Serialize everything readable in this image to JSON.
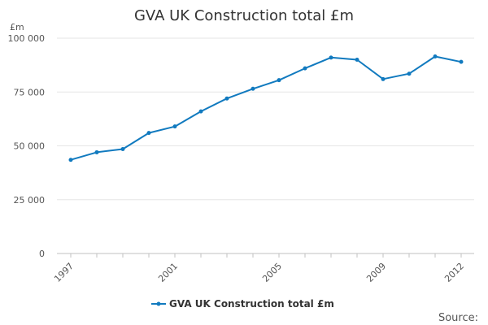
{
  "chart_data": {
    "type": "line",
    "title": "GVA UK Construction total £m",
    "ylabel": "£m",
    "xlabel": "",
    "x": [
      1997,
      1998,
      1999,
      2000,
      2001,
      2002,
      2003,
      2004,
      2005,
      2006,
      2007,
      2008,
      2009,
      2010,
      2011,
      2012
    ],
    "series": [
      {
        "name": "GVA UK Construction total £m",
        "values": [
          43500,
          47000,
          48500,
          56000,
          59000,
          66000,
          72000,
          76500,
          80500,
          86000,
          91000,
          90000,
          81000,
          83500,
          91500,
          89000
        ]
      }
    ],
    "ylim": [
      0,
      100000
    ],
    "xlim": [
      1997,
      2012
    ],
    "y_ticks": [
      0,
      25000,
      50000,
      75000,
      100000
    ],
    "y_tick_labels": [
      "0",
      "25 000",
      "50 000",
      "75 000",
      "100 000"
    ],
    "x_tick_labels": [
      "1997",
      "2001",
      "2005",
      "2009",
      "2012"
    ],
    "x_tick_values": [
      1997,
      2001,
      2005,
      2009,
      2012
    ],
    "grid": "horizontal",
    "legend_position": "bottom",
    "line_color": "#117abf",
    "source_label": "Source:"
  }
}
